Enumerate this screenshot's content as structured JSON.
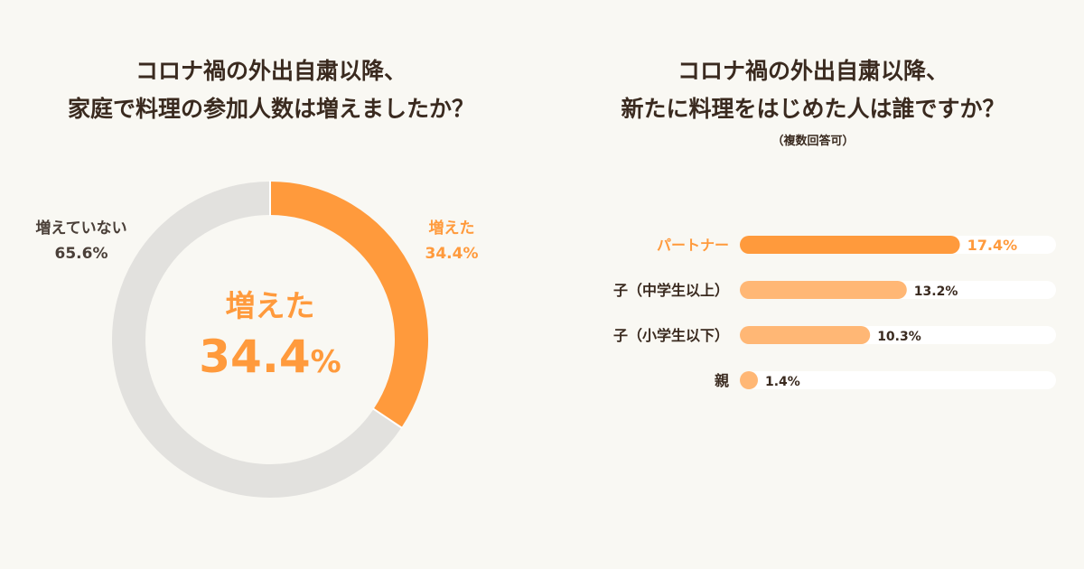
{
  "chart_data": [
    {
      "type": "pie",
      "title": [
        "コロナ禍の外出自粛以降、",
        "家庭で料理の参加人数は増えましたか？"
      ],
      "slices": [
        {
          "label": "増えた",
          "value": 34.4,
          "value_text": "34.4%",
          "color": "#ff9a3c"
        },
        {
          "label": "増えていない",
          "value": 65.6,
          "value_text": "65.6%",
          "color": "#e2e1de"
        }
      ],
      "center": {
        "label": "増えた",
        "value": "34.4",
        "unit": "%"
      }
    },
    {
      "type": "bar",
      "title": [
        "コロナ禍の外出自粛以降、",
        "新たに料理をはじめた人は誰ですか？"
      ],
      "note": "（複数回答可）",
      "xlim": [
        0,
        25
      ],
      "categories": [
        "パートナー",
        "子（中学生以上）",
        "子（小学生以下）",
        "親"
      ],
      "values": [
        17.4,
        13.2,
        10.3,
        1.4
      ],
      "value_texts": [
        "17.4%",
        "13.2%",
        "10.3%",
        "1.4%"
      ],
      "highlight_color": "#ff9a3c",
      "bar_color": "#ffb775",
      "track_color": "#ffffff"
    }
  ]
}
